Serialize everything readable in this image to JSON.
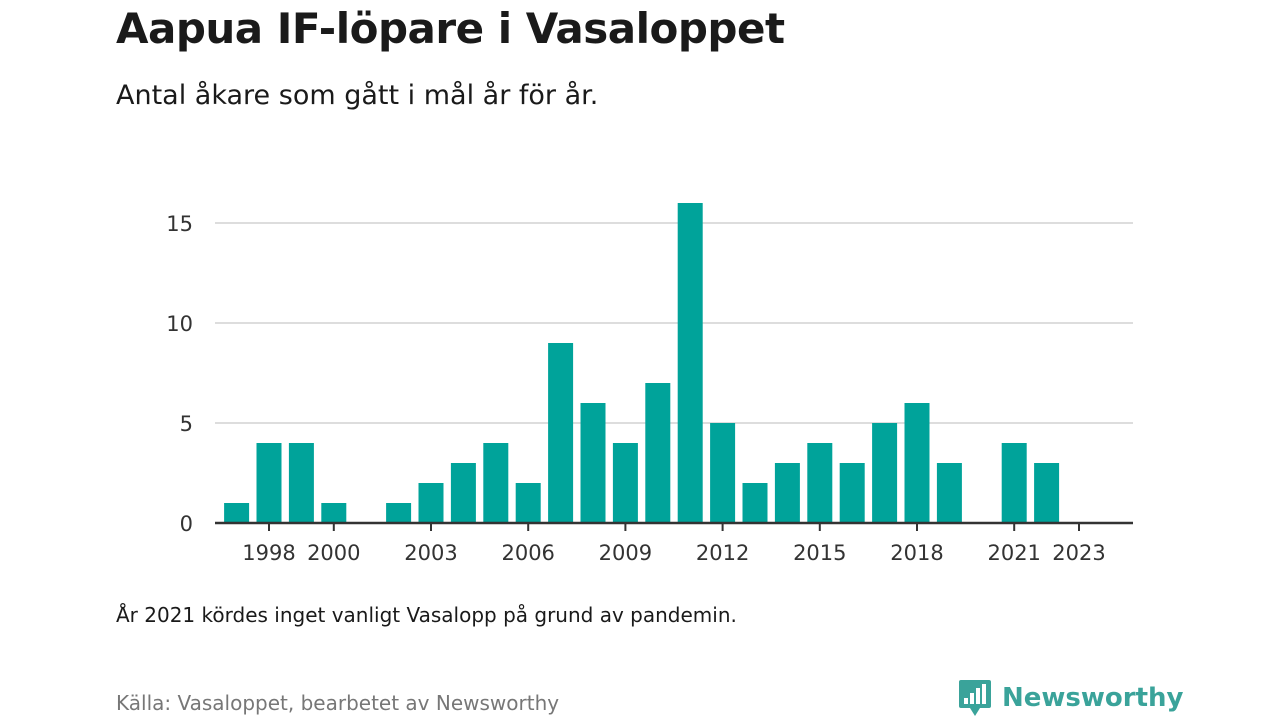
{
  "header": {
    "title": "Aapua IF-löpare i Vasaloppet",
    "subtitle": "Antal åkare som gått i mål år för år."
  },
  "footer": {
    "note": "År 2021 kördes inget vanligt Vasalopp på grund av pandemin.",
    "source": "Källa: Vasaloppet, bearbetet av Newsworthy",
    "brand": "Newsworthy",
    "brand_icon": "newsworthy-logo-icon"
  },
  "colors": {
    "bar": "#00a39a",
    "grid": "#dddddd",
    "axis": "#333333",
    "brand": "#3aa39a"
  },
  "chart_data": {
    "type": "bar",
    "title": "Aapua IF-löpare i Vasaloppet",
    "xlabel": "",
    "ylabel": "",
    "x_range": [
      1996,
      2024
    ],
    "ylim": [
      0,
      16
    ],
    "yticks": [
      0,
      5,
      10,
      15
    ],
    "xticks": [
      1998,
      2000,
      2003,
      2006,
      2009,
      2012,
      2015,
      2018,
      2021,
      2023
    ],
    "grid": true,
    "categories": [
      1997,
      1998,
      1999,
      2000,
      2001,
      2002,
      2003,
      2004,
      2005,
      2006,
      2007,
      2008,
      2009,
      2010,
      2011,
      2012,
      2013,
      2014,
      2015,
      2016,
      2017,
      2018,
      2019,
      2020,
      2021,
      2022,
      2023
    ],
    "values": [
      1,
      4,
      4,
      1,
      0,
      1,
      2,
      3,
      4,
      2,
      9,
      6,
      4,
      7,
      16,
      5,
      2,
      3,
      4,
      3,
      5,
      6,
      3,
      0,
      4,
      3,
      0
    ]
  }
}
